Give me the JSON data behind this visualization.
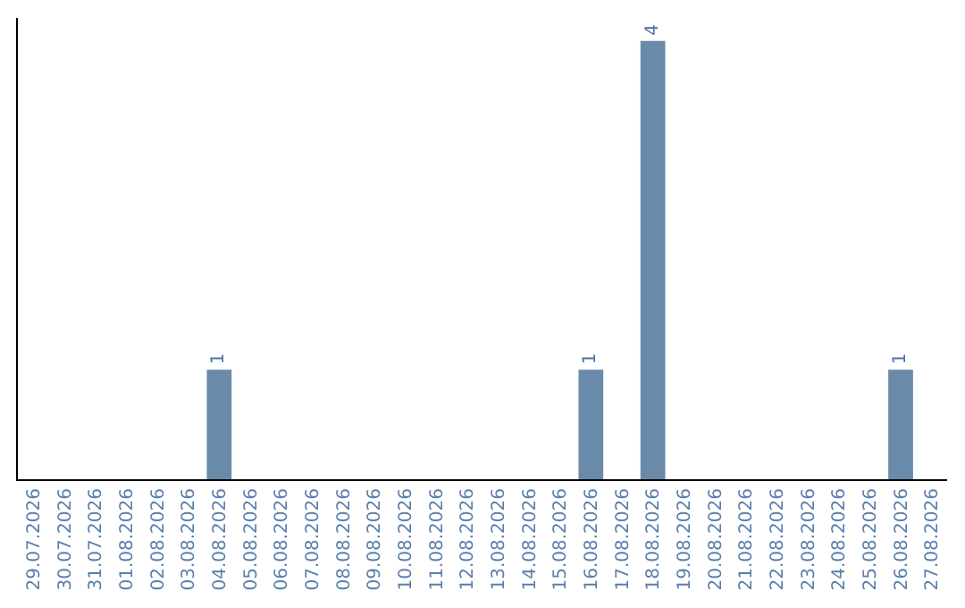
{
  "chart_data": {
    "type": "bar",
    "categories": [
      "29.07.2026",
      "30.07.2026",
      "31.07.2026",
      "01.08.2026",
      "02.08.2026",
      "03.08.2026",
      "04.08.2026",
      "05.08.2026",
      "06.08.2026",
      "07.08.2026",
      "08.08.2026",
      "09.08.2026",
      "10.08.2026",
      "11.08.2026",
      "12.08.2026",
      "13.08.2026",
      "14.08.2026",
      "15.08.2026",
      "16.08.2026",
      "17.08.2026",
      "18.08.2026",
      "19.08.2026",
      "20.08.2026",
      "21.08.2026",
      "22.08.2026",
      "23.08.2026",
      "24.08.2026",
      "25.08.2026",
      "26.08.2026",
      "27.08.2026"
    ],
    "values": [
      null,
      null,
      null,
      null,
      null,
      null,
      1,
      null,
      null,
      null,
      null,
      null,
      null,
      null,
      null,
      null,
      null,
      null,
      1,
      null,
      4,
      null,
      null,
      null,
      null,
      null,
      null,
      null,
      1,
      null
    ],
    "color": "#6a8aaa",
    "data_labels": true,
    "tick_labels": "x",
    "grid": false,
    "legend": false
  }
}
